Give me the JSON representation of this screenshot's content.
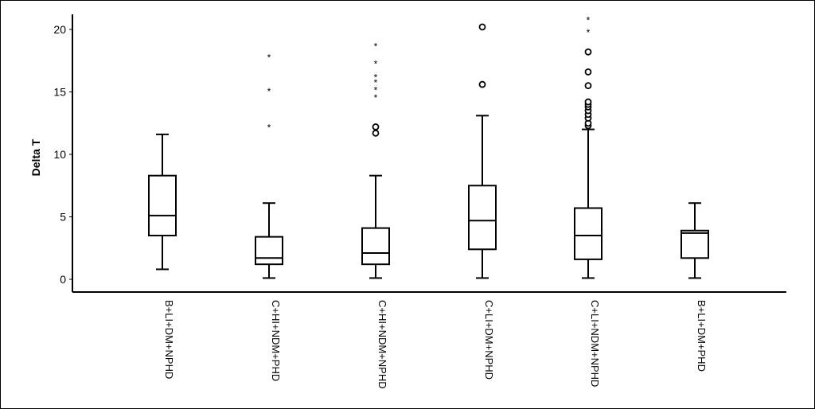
{
  "chart_data": {
    "type": "boxplot",
    "title": "",
    "ylabel": "Delta T",
    "xlabel": "",
    "ylim": [
      -1,
      21.5
    ],
    "yticks": [
      0,
      5,
      10,
      15,
      20
    ],
    "grid": false,
    "categories": [
      "B+LI+DM+NPHD",
      "C+HI+NDM+PHD",
      "C+HI+NDM+NPHD",
      "C+LI+DM+NPHD",
      "C+LI+NDM+NPHD",
      "B+LI+DM+PHD"
    ],
    "boxes": [
      {
        "whisker_low": 0.8,
        "q1": 3.5,
        "median": 5.1,
        "q3": 8.3,
        "whisker_high": 11.6,
        "outliers": [],
        "extremes": []
      },
      {
        "whisker_low": 0.1,
        "q1": 1.2,
        "median": 1.7,
        "q3": 3.4,
        "whisker_high": 6.1,
        "outliers": [],
        "extremes": [
          12.2,
          15.1,
          17.8
        ]
      },
      {
        "whisker_low": 0.1,
        "q1": 1.2,
        "median": 2.1,
        "q3": 4.1,
        "whisker_high": 8.3,
        "outliers": [
          11.7,
          12.2
        ],
        "extremes": [
          14.6,
          15.2,
          15.8,
          16.2,
          17.3,
          18.7
        ]
      },
      {
        "whisker_low": 0.1,
        "q1": 2.4,
        "median": 4.7,
        "q3": 7.5,
        "whisker_high": 13.1,
        "outliers": [
          15.6,
          20.2
        ],
        "extremes": []
      },
      {
        "whisker_low": 0.1,
        "q1": 1.6,
        "median": 3.5,
        "q3": 5.7,
        "whisker_high": 12.0,
        "outliers": [
          12.3,
          12.5,
          12.9,
          13.2,
          13.5,
          13.8,
          14.0,
          14.2,
          15.5,
          16.6,
          18.2
        ],
        "extremes": [
          19.8,
          20.8
        ]
      },
      {
        "whisker_low": 0.1,
        "q1": 1.7,
        "median": 3.7,
        "q3": 3.9,
        "whisker_high": 6.1,
        "outliers": [],
        "extremes": []
      }
    ]
  }
}
